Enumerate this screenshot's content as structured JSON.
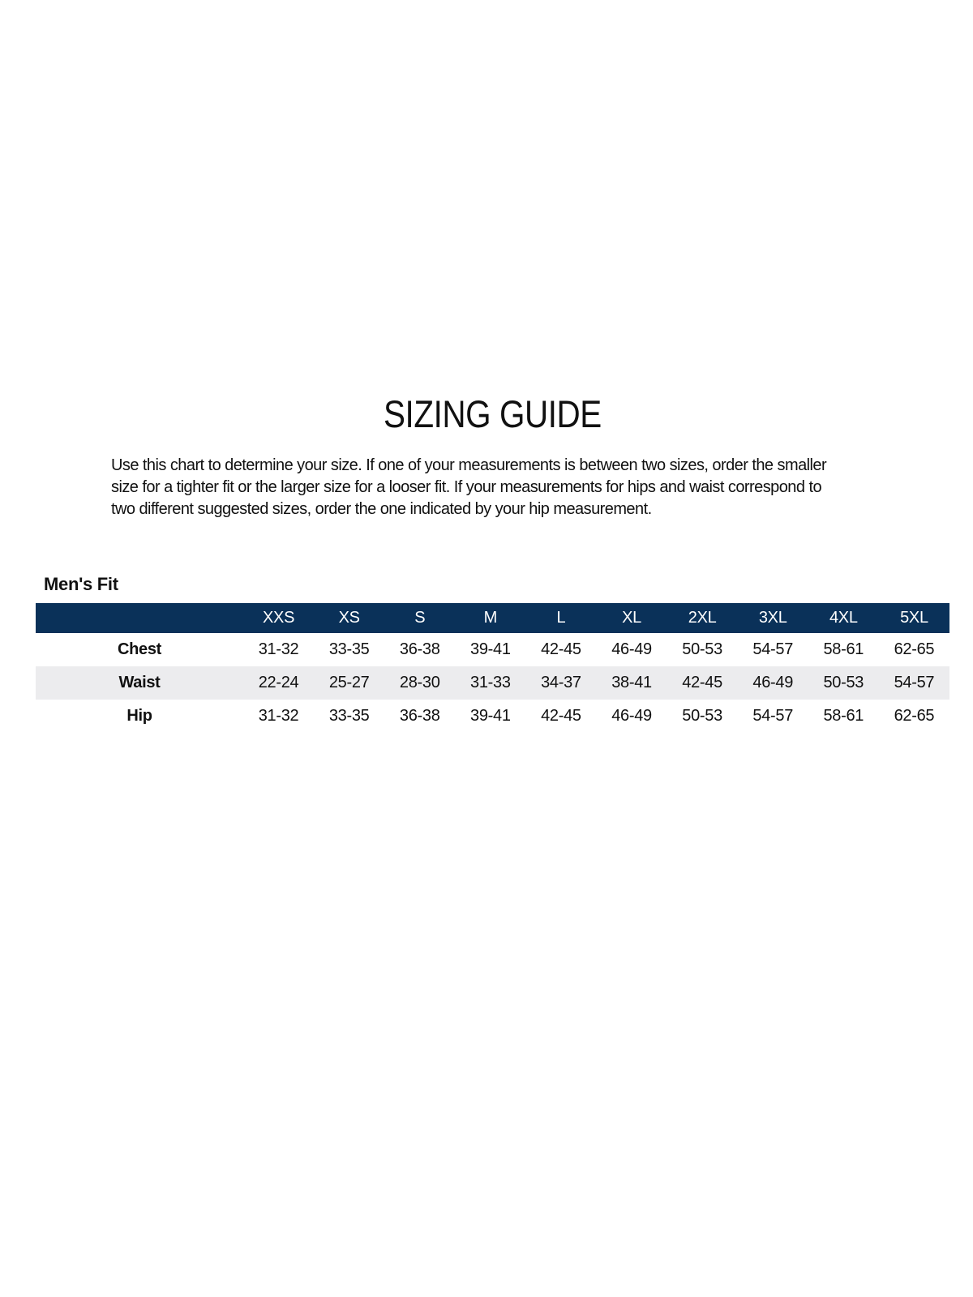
{
  "title": "SIZING GUIDE",
  "description": [
    "Use this chart to determine your size. If one of your measurements is between two sizes, order the smaller",
    "size for a tighter fit or the larger size for a looser fit. If your measurements for hips and waist correspond to",
    "two different suggested sizes, order the one indicated by your hip measurement."
  ],
  "section_title": "Men's Fit",
  "header_color": "#0a3159",
  "stripe_color": "#ececee",
  "table": {
    "corner": "",
    "sizes": [
      "XXS",
      "XS",
      "S",
      "M",
      "L",
      "XL",
      "2XL",
      "3XL",
      "4XL",
      "5XL"
    ],
    "rows": [
      {
        "label": "Chest",
        "values": [
          "31-32",
          "33-35",
          "36-38",
          "39-41",
          "42-45",
          "46-49",
          "50-53",
          "54-57",
          "58-61",
          "62-65"
        ]
      },
      {
        "label": "Waist",
        "values": [
          "22-24",
          "25-27",
          "28-30",
          "31-33",
          "34-37",
          "38-41",
          "42-45",
          "46-49",
          "50-53",
          "54-57"
        ]
      },
      {
        "label": "Hip",
        "values": [
          "31-32",
          "33-35",
          "36-38",
          "39-41",
          "42-45",
          "46-49",
          "50-53",
          "54-57",
          "58-61",
          "62-65"
        ]
      }
    ]
  }
}
